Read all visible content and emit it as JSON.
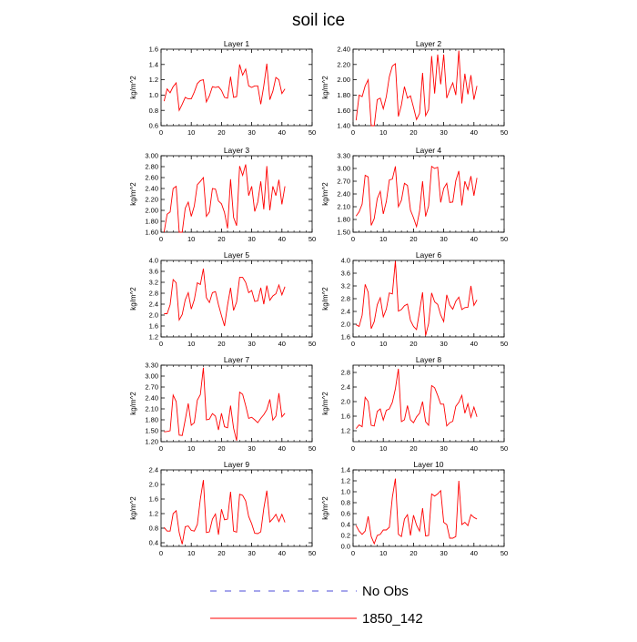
{
  "figure": {
    "title": "soil ice"
  },
  "colors": {
    "model": "#ff0000",
    "obs": "#4d4dd9",
    "axis": "#000000"
  },
  "legend": [
    {
      "label": "No Obs",
      "style": "dashed",
      "color": "#4d4dd9"
    },
    {
      "label": "1850_142",
      "style": "solid",
      "color": "#ff0000"
    }
  ],
  "chart_data": [
    {
      "type": "line",
      "title": "Layer 1",
      "ylabel": "kg/m^2",
      "xlim": [
        0,
        50
      ],
      "xticks": [
        0,
        10,
        20,
        30,
        40,
        50
      ],
      "ylim": [
        0.6,
        1.6
      ],
      "yticks": [
        "0.6",
        "0.8",
        "1.0",
        "1.2",
        "1.4",
        "1.6"
      ],
      "series": [
        {
          "name": "1850_142",
          "x": [
            1,
            2,
            3,
            4,
            5,
            6,
            7,
            8,
            9,
            10,
            11,
            12,
            13,
            14,
            15,
            16,
            17,
            18,
            19,
            20,
            21,
            22,
            23,
            24,
            25,
            26,
            27,
            28,
            29,
            30,
            31,
            32,
            33,
            34,
            35,
            36,
            37,
            38,
            39,
            40,
            41
          ],
          "values": [
            0.92,
            1.08,
            1.03,
            1.11,
            1.16,
            0.8,
            0.88,
            0.97,
            0.95,
            0.95,
            1.04,
            1.15,
            1.19,
            1.2,
            0.91,
            0.99,
            1.11,
            1.1,
            1.11,
            1.06,
            0.97,
            0.96,
            1.24,
            0.97,
            0.98,
            1.4,
            1.26,
            1.34,
            1.12,
            1.1,
            1.12,
            1.12,
            0.88,
            1.12,
            1.41,
            0.94,
            1.05,
            1.23,
            1.2,
            1.02,
            1.08
          ]
        }
      ]
    },
    {
      "type": "line",
      "title": "Layer 2",
      "ylabel": "kg/m^2",
      "xlim": [
        0,
        50
      ],
      "xticks": [
        0,
        10,
        20,
        30,
        40,
        50
      ],
      "ylim": [
        1.4,
        2.4
      ],
      "yticks": [
        "1.40",
        "1.60",
        "1.80",
        "2.00",
        "2.20",
        "2.40"
      ],
      "series": [
        {
          "name": "1850_142",
          "x": [
            1,
            2,
            3,
            4,
            5,
            6,
            7,
            8,
            9,
            10,
            11,
            12,
            13,
            14,
            15,
            16,
            17,
            18,
            19,
            20,
            21,
            22,
            23,
            24,
            25,
            26,
            27,
            28,
            29,
            30,
            31,
            32,
            33,
            34,
            35,
            36,
            37,
            38,
            39,
            40,
            41
          ],
          "values": [
            1.47,
            1.8,
            1.78,
            1.92,
            2.0,
            1.4,
            1.4,
            1.74,
            1.76,
            1.62,
            1.78,
            2.04,
            2.18,
            2.21,
            1.52,
            1.67,
            1.91,
            1.76,
            1.79,
            1.64,
            1.48,
            1.56,
            2.09,
            1.53,
            1.61,
            2.31,
            1.82,
            2.33,
            1.94,
            2.33,
            1.76,
            1.87,
            1.96,
            1.8,
            2.38,
            1.69,
            2.08,
            1.81,
            2.06,
            1.74,
            1.92
          ]
        }
      ]
    },
    {
      "type": "line",
      "title": "Layer 3",
      "ylabel": "kg/m^2",
      "xlim": [
        0,
        50
      ],
      "xticks": [
        0,
        10,
        20,
        30,
        40,
        50
      ],
      "ylim": [
        1.6,
        3.0
      ],
      "yticks": [
        "1.60",
        "1.80",
        "2.00",
        "2.20",
        "2.40",
        "2.60",
        "2.80",
        "3.00"
      ],
      "series": [
        {
          "name": "1850_142",
          "x": [
            1,
            2,
            3,
            4,
            5,
            6,
            7,
            8,
            9,
            10,
            11,
            12,
            13,
            14,
            15,
            16,
            17,
            18,
            19,
            20,
            21,
            22,
            23,
            24,
            25,
            26,
            27,
            28,
            29,
            30,
            31,
            32,
            33,
            34,
            35,
            36,
            37,
            38,
            39,
            40,
            41
          ],
          "values": [
            1.6,
            1.93,
            1.97,
            2.4,
            2.44,
            1.6,
            1.6,
            2.04,
            2.15,
            1.89,
            2.08,
            2.47,
            2.53,
            2.6,
            1.89,
            1.97,
            2.4,
            2.39,
            2.17,
            2.12,
            1.96,
            1.67,
            2.57,
            1.87,
            1.72,
            2.81,
            2.64,
            2.84,
            2.27,
            2.44,
            1.98,
            2.15,
            2.53,
            2.02,
            2.81,
            2.0,
            2.44,
            2.27,
            2.56,
            2.11,
            2.44
          ]
        }
      ]
    },
    {
      "type": "line",
      "title": "Layer 4",
      "ylabel": "kg/m^2",
      "xlim": [
        0,
        50
      ],
      "xticks": [
        0,
        10,
        20,
        30,
        40,
        50
      ],
      "ylim": [
        1.5,
        3.3
      ],
      "yticks": [
        "1.50",
        "1.80",
        "2.10",
        "2.40",
        "2.70",
        "3.00",
        "3.30"
      ],
      "series": [
        {
          "name": "1850_142",
          "x": [
            1,
            2,
            3,
            4,
            5,
            6,
            7,
            8,
            9,
            10,
            11,
            12,
            13,
            14,
            15,
            16,
            17,
            18,
            19,
            20,
            21,
            22,
            23,
            24,
            25,
            26,
            27,
            28,
            29,
            30,
            31,
            32,
            33,
            34,
            35,
            36,
            37,
            38,
            39,
            40,
            41
          ],
          "values": [
            1.88,
            1.98,
            2.16,
            2.84,
            2.8,
            1.66,
            1.82,
            2.29,
            2.46,
            1.93,
            2.22,
            2.73,
            2.75,
            3.05,
            2.1,
            2.25,
            2.65,
            2.6,
            2.02,
            1.84,
            1.63,
            1.99,
            2.7,
            1.87,
            2.12,
            3.05,
            3.0,
            3.03,
            2.2,
            2.53,
            2.65,
            2.2,
            2.21,
            2.71,
            2.94,
            2.13,
            2.7,
            2.5,
            2.82,
            2.36,
            2.78
          ]
        }
      ]
    },
    {
      "type": "line",
      "title": "Layer 5",
      "ylabel": "kg/m^2",
      "xlim": [
        0,
        50
      ],
      "xticks": [
        0,
        10,
        20,
        30,
        40,
        50
      ],
      "ylim": [
        1.2,
        4.0
      ],
      "yticks": [
        "1.2",
        "1.6",
        "2.0",
        "2.4",
        "2.8",
        "3.2",
        "3.6",
        "4.0"
      ],
      "series": [
        {
          "name": "1850_142",
          "x": [
            1,
            2,
            3,
            4,
            5,
            6,
            7,
            8,
            9,
            10,
            11,
            12,
            13,
            14,
            15,
            16,
            17,
            18,
            19,
            20,
            21,
            22,
            23,
            24,
            25,
            26,
            27,
            28,
            29,
            30,
            31,
            32,
            33,
            34,
            35,
            36,
            37,
            38,
            39,
            40,
            41
          ],
          "values": [
            2.05,
            2.05,
            2.38,
            3.3,
            3.18,
            1.82,
            2.02,
            2.56,
            2.82,
            2.22,
            2.56,
            3.18,
            3.12,
            3.7,
            2.64,
            2.46,
            2.82,
            2.86,
            2.38,
            1.98,
            1.6,
            2.36,
            3.0,
            2.17,
            2.48,
            3.38,
            3.38,
            3.2,
            2.82,
            2.9,
            2.5,
            2.52,
            3.0,
            2.4,
            3.08,
            2.54,
            2.7,
            2.78,
            3.1,
            2.74,
            3.04
          ]
        }
      ]
    },
    {
      "type": "line",
      "title": "Layer 6",
      "ylabel": "kg/m^2",
      "xlim": [
        0,
        50
      ],
      "xticks": [
        0,
        10,
        20,
        30,
        40,
        50
      ],
      "ylim": [
        1.6,
        4.0
      ],
      "yticks": [
        "1.6",
        "2.0",
        "2.4",
        "2.8",
        "3.2",
        "3.6",
        "4.0"
      ],
      "series": [
        {
          "name": "1850_142",
          "x": [
            1,
            2,
            3,
            4,
            5,
            6,
            7,
            8,
            9,
            10,
            11,
            12,
            13,
            14,
            15,
            16,
            17,
            18,
            19,
            20,
            21,
            22,
            23,
            24,
            25,
            26,
            27,
            28,
            29,
            30,
            31,
            32,
            33,
            34,
            35,
            36,
            37,
            38,
            39,
            40,
            41
          ],
          "values": [
            1.98,
            1.93,
            2.28,
            3.25,
            3.0,
            1.86,
            2.08,
            2.61,
            2.83,
            2.23,
            2.47,
            2.98,
            2.95,
            3.98,
            2.41,
            2.46,
            2.58,
            2.63,
            2.12,
            1.93,
            1.83,
            2.4,
            3.0,
            1.64,
            2.02,
            2.98,
            2.7,
            2.62,
            2.29,
            2.08,
            2.92,
            2.6,
            2.47,
            2.72,
            2.85,
            2.46,
            2.52,
            2.53,
            3.2,
            2.59,
            2.76
          ]
        }
      ]
    },
    {
      "type": "line",
      "title": "Layer 7",
      "ylabel": "kg/m^2",
      "xlim": [
        0,
        50
      ],
      "xticks": [
        0,
        10,
        20,
        30,
        40,
        50
      ],
      "ylim": [
        1.2,
        3.3
      ],
      "yticks": [
        "1.20",
        "1.50",
        "1.80",
        "2.10",
        "2.40",
        "2.70",
        "3.00",
        "3.30"
      ],
      "series": [
        {
          "name": "1850_142",
          "x": [
            1,
            2,
            3,
            4,
            5,
            6,
            7,
            8,
            9,
            10,
            11,
            12,
            13,
            14,
            15,
            16,
            17,
            18,
            19,
            20,
            21,
            22,
            23,
            24,
            25,
            26,
            27,
            28,
            29,
            30,
            31,
            32,
            33,
            34,
            35,
            36,
            37,
            38,
            39,
            40,
            41
          ],
          "values": [
            1.47,
            1.48,
            1.5,
            2.48,
            2.3,
            1.38,
            1.37,
            1.8,
            2.25,
            1.65,
            1.72,
            2.34,
            2.49,
            3.23,
            1.8,
            1.82,
            1.97,
            1.9,
            1.52,
            1.98,
            1.61,
            1.58,
            2.19,
            1.57,
            1.23,
            2.56,
            2.5,
            2.19,
            1.84,
            1.87,
            1.8,
            1.72,
            1.84,
            1.94,
            2.08,
            2.36,
            1.79,
            1.9,
            2.53,
            1.88,
            1.98
          ]
        }
      ]
    },
    {
      "type": "line",
      "title": "Layer 8",
      "ylabel": "kg/m^2",
      "xlim": [
        0,
        50
      ],
      "xticks": [
        0,
        10,
        20,
        30,
        40,
        50
      ],
      "ylim": [
        0.9,
        3.0
      ],
      "yticks": [
        "1.2",
        "1.6",
        "2.0",
        "2.4",
        "2.8"
      ],
      "series": [
        {
          "name": "1850_142",
          "x": [
            1,
            2,
            3,
            4,
            5,
            6,
            7,
            8,
            9,
            10,
            11,
            12,
            13,
            14,
            15,
            16,
            17,
            18,
            19,
            20,
            21,
            22,
            23,
            24,
            25,
            26,
            27,
            28,
            29,
            30,
            31,
            32,
            33,
            34,
            35,
            36,
            37,
            38,
            39,
            40,
            41
          ],
          "values": [
            1.26,
            1.36,
            1.31,
            2.12,
            2.0,
            1.35,
            1.33,
            1.73,
            1.8,
            1.49,
            1.76,
            1.8,
            1.98,
            2.35,
            2.9,
            1.45,
            1.5,
            1.89,
            1.5,
            1.42,
            1.58,
            1.68,
            2.0,
            1.45,
            1.35,
            2.44,
            2.38,
            2.17,
            1.93,
            1.93,
            1.33,
            1.42,
            1.46,
            1.87,
            1.98,
            2.17,
            1.68,
            1.94,
            1.57,
            1.85,
            1.58
          ]
        }
      ]
    },
    {
      "type": "line",
      "title": "Layer 9",
      "ylabel": "kg/m^2",
      "xlim": [
        0,
        50
      ],
      "xticks": [
        0,
        10,
        20,
        30,
        40,
        50
      ],
      "ylim": [
        0.3,
        2.4
      ],
      "yticks": [
        "0.4",
        "0.8",
        "1.2",
        "1.6",
        "2.0",
        "2.4"
      ],
      "series": [
        {
          "name": "1850_142",
          "x": [
            1,
            2,
            3,
            4,
            5,
            6,
            7,
            8,
            9,
            10,
            11,
            12,
            13,
            14,
            15,
            16,
            17,
            18,
            19,
            20,
            21,
            22,
            23,
            24,
            25,
            26,
            27,
            28,
            29,
            30,
            31,
            32,
            33,
            34,
            35,
            36,
            37,
            38,
            39,
            40,
            41
          ],
          "values": [
            0.82,
            0.72,
            0.72,
            1.2,
            1.28,
            0.68,
            0.36,
            0.84,
            0.86,
            0.74,
            0.72,
            0.9,
            1.6,
            2.12,
            0.68,
            0.7,
            1.05,
            1.19,
            0.62,
            1.32,
            1.03,
            1.05,
            1.8,
            0.72,
            0.69,
            1.73,
            1.7,
            1.55,
            1.12,
            0.92,
            0.66,
            0.65,
            0.7,
            1.34,
            1.83,
            0.97,
            1.06,
            1.18,
            0.98,
            1.18,
            0.96
          ]
        }
      ]
    },
    {
      "type": "line",
      "title": "Layer 10",
      "ylabel": "kg/m^2",
      "xlim": [
        0,
        50
      ],
      "xticks": [
        0,
        10,
        20,
        30,
        40,
        50
      ],
      "ylim": [
        0.0,
        1.4
      ],
      "yticks": [
        "0.0",
        "0.2",
        "0.4",
        "0.6",
        "0.8",
        "1.0",
        "1.2",
        "1.4"
      ],
      "series": [
        {
          "name": "1850_142",
          "x": [
            1,
            2,
            3,
            4,
            5,
            6,
            7,
            8,
            9,
            10,
            11,
            12,
            13,
            14,
            15,
            16,
            17,
            18,
            19,
            20,
            21,
            22,
            23,
            24,
            25,
            26,
            27,
            28,
            29,
            30,
            31,
            32,
            33,
            34,
            35,
            36,
            37,
            38,
            39,
            40,
            41
          ],
          "values": [
            0.38,
            0.28,
            0.22,
            0.28,
            0.55,
            0.18,
            0.05,
            0.2,
            0.22,
            0.3,
            0.3,
            0.35,
            0.9,
            1.24,
            0.22,
            0.18,
            0.5,
            0.58,
            0.2,
            0.57,
            0.39,
            0.28,
            0.7,
            0.19,
            0.2,
            0.96,
            0.92,
            0.96,
            1.02,
            0.44,
            0.4,
            0.15,
            0.15,
            0.18,
            1.2,
            0.4,
            0.44,
            0.38,
            0.58,
            0.53,
            0.5
          ]
        }
      ]
    }
  ]
}
